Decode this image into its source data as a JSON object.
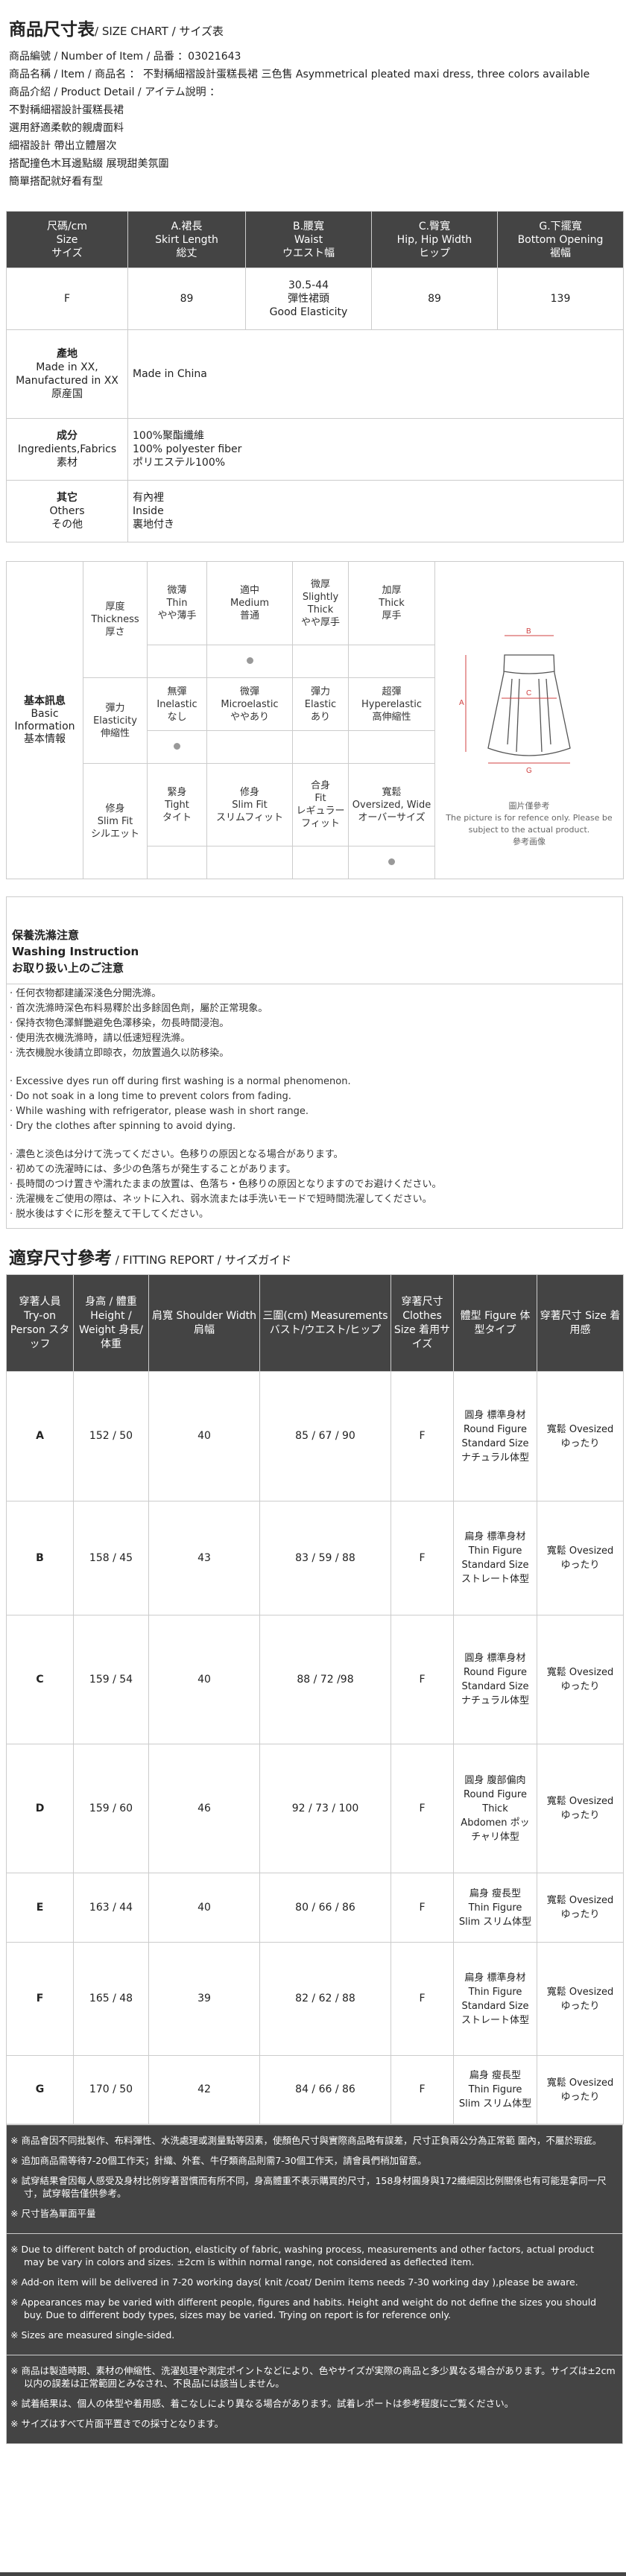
{
  "header": {
    "title": "商品尺寸表",
    "subtitle": "/ SIZE CHART / サイズ表",
    "lines": [
      "商品編號 / Number of Item / 品番 ：03021643",
      "商品名稱 / Item / 商品名 ： 不對稱細褶設計蛋糕長裙 三色售 Asymmetrical pleated maxi dress, three colors available",
      "商品介紹 / Product Detail / アイテム說明 ：",
      "不對稱細褶設計蛋糕長裙",
      "選用舒適柔軟的親膚面料",
      "細褶設計 帶出立體層次",
      "搭配撞色木耳邊點綴 展現甜美氛圍",
      "簡單搭配就好看有型"
    ]
  },
  "size_chart": {
    "headers": [
      [
        "尺碼/cm",
        "Size",
        "サイズ"
      ],
      [
        "A.裙長",
        "Skirt Length",
        "総丈"
      ],
      [
        "B.腰寬",
        "Waist",
        "ウエスト幅"
      ],
      [
        "C.臀寬",
        "Hip, Hip Width",
        "ヒップ"
      ],
      [
        "G.下擺寬",
        "Bottom Opening",
        "裾幅"
      ]
    ],
    "row": {
      "size": "F",
      "length": "89",
      "waist": [
        "30.5-44",
        "彈性裙頭",
        "Good Elasticity"
      ],
      "hip": "89",
      "bottom": "139"
    },
    "origin": {
      "label": [
        "產地",
        "Made in XX, Manufactured in XX",
        "原産国"
      ],
      "value": "Made in China"
    },
    "fabric": {
      "label": [
        "成分",
        "Ingredients,Fabrics",
        "素材"
      ],
      "value": [
        "100%聚酯纖維",
        "100% polyester fiber",
        "ポリエステル100%"
      ]
    },
    "others": {
      "label": [
        "其它",
        "Others",
        "その他"
      ],
      "value": [
        "有內裡",
        "Inside",
        "裏地付き"
      ]
    }
  },
  "basic_info": {
    "title": [
      "基本訊息",
      "Basic Information",
      "基本情報"
    ],
    "rows": [
      {
        "label": [
          "厚度",
          "Thickness",
          "厚さ"
        ],
        "options": [
          [
            "微薄",
            "Thin",
            "やや薄手"
          ],
          [
            "適中",
            "Medium",
            "普通"
          ],
          [
            "微厚",
            "Slightly Thick",
            "やや厚手"
          ],
          [
            "加厚",
            "Thick",
            "厚手"
          ]
        ],
        "selected": 1
      },
      {
        "label": [
          "彈力",
          "Elasticity",
          "伸縮性"
        ],
        "options": [
          [
            "無彈",
            "Inelastic",
            "なし"
          ],
          [
            "微彈",
            "Microelastic",
            "ややあり"
          ],
          [
            "彈力",
            "Elastic",
            "あり"
          ],
          [
            "超彈",
            "Hyperelastic",
            "高伸縮性"
          ]
        ],
        "selected": 0
      },
      {
        "label": [
          "修身",
          "Slim Fit",
          "シルエット"
        ],
        "options": [
          [
            "緊身",
            "Tight",
            "タイト"
          ],
          [
            "修身",
            "Slim Fit",
            "スリムフィット"
          ],
          [
            "合身",
            "Fit",
            "レギュラーフィット"
          ],
          [
            "寬鬆",
            "Oversized, Wide",
            "オーバーサイズ"
          ]
        ],
        "selected": 3
      }
    ],
    "diagram_labels": {
      "a": "A",
      "b": "B",
      "c": "C",
      "g": "G"
    },
    "diagram_caption": [
      "圖片僅參考",
      "The picture is for refence only. Please be subject to the actual product.",
      "參考画像"
    ],
    "diagram_color": "#d04040"
  },
  "washing": {
    "title": [
      "保養洗滌注意",
      "Washing Instruction",
      "お取り扱い上のご注意"
    ],
    "zh": [
      "· 任何衣物都建議深淺色分開洗滌。",
      "· 首次洗滌時深色布料易釋於出多餘固色劑，屬於正常現象。",
      "· 保持衣物色澤鮮艷避免色澤移染，勿長時間浸泡。",
      "· 使用洗衣機洗滌時，請以低速短程洗滌。",
      "· 洗衣機脫水後請立即晾衣，勿放置過久以防移染。"
    ],
    "en": [
      "· Excessive dyes run off during first washing is a normal phenomenon.",
      "· Do not soak in a long time to prevent colors from fading.",
      "· While washing with refrigerator, please wash in short range.",
      "· Dry the clothes after spinning to avoid dying."
    ],
    "ja": [
      "· 濃色と淡色は分けて洗ってください。色移りの原因となる場合があります。",
      "· 初めての洗濯時には、多少の色落ちが発生することがあります。",
      "· 長時間のつけ置きや濡れたままの放置は、色落ち・色移りの原因となりますのでお避けください。",
      "· 洗濯機をご使用の際は、ネットに入れ、弱水流または手洗いモードで短時間洗濯してください。",
      "· 脱水後はすぐに形を整えて干してください。"
    ]
  },
  "fitting": {
    "title": "適穿尺寸參考",
    "subtitle": "/ FITTING REPORT / サイズガイド",
    "headers": [
      "穿著人員 Try-on Person スタッフ",
      "身高 / 體重 Height / Weight 身長/体重",
      "肩寬 Shoulder Width 肩幅",
      "三圍(cm) Measurements バスト/ウエスト/ヒップ",
      "穿著尺寸 Clothes Size 着用サイズ",
      "體型 Figure 体型タイプ",
      "穿著尺寸 Size 着用感"
    ],
    "rows": [
      [
        "A",
        "152 / 50",
        "40",
        "85 / 67 / 90",
        "F",
        "圓身 標準身材 Round Figure Standard Size ナチュラル体型",
        "寬鬆 Ovesized ゆったり"
      ],
      [
        "B",
        "158 / 45",
        "43",
        "83 / 59 / 88",
        "F",
        "扁身 標準身材 Thin Figure Standard Size ストレート体型",
        "寬鬆 Ovesized ゆったり"
      ],
      [
        "C",
        "159 / 54",
        "40",
        "88 / 72 /98",
        "F",
        "圓身 標準身材 Round Figure Standard Size ナチュラル体型",
        "寬鬆 Ovesized ゆったり"
      ],
      [
        "D",
        "159 / 60",
        "46",
        "92 / 73 / 100",
        "F",
        "圓身 腹部偏肉 Round Figure Thick Abdomen ポッチャリ体型",
        "寬鬆 Ovesized ゆったり"
      ],
      [
        "E",
        "163 / 44",
        "40",
        "80 / 66 / 86",
        "F",
        "扁身 瘦長型 Thin Figure Slim スリム体型",
        "寬鬆 Ovesized ゆったり"
      ],
      [
        "F",
        "165 / 48",
        "39",
        "82 / 62 / 88",
        "F",
        "扁身 標準身材 Thin Figure Standard Size ストレート体型",
        "寬鬆 Ovesized ゆったり"
      ],
      [
        "G",
        "170 / 50",
        "42",
        "84 / 66 / 86",
        "F",
        "扁身 瘦長型 Thin Figure Slim スリム体型",
        "寬鬆 Ovesized ゆったり"
      ]
    ]
  },
  "notes": {
    "zh": [
      "※ 商品會因不同批製作、布料彈性、水洗處理或測量點等因素，使顏色尺寸與實際商品略有誤差，尺寸正負兩公分為正常範 圍內，不屬於瑕疵。",
      "※ 追加商品需等待7-20個工作天；針織、外套、牛仔類商品則需7-30個工作天，請會員們稍加留意。",
      "※ 試穿結果會因每人感受及身材比例穿著習慣而有所不同，身高體重不表示購買的尺寸，158身材圓身與172纖細因比例關係也有可能是拿同一尺寸，試穿報告僅供參考。",
      "※ 尺寸皆為單面平量"
    ],
    "en": [
      "※ Due to different batch of production, elasticity of fabric, washing process, measurements and other factors, actual product may be vary in colors and sizes. ±2cm is within normal range, not considered as deflected item.",
      "※ Add-on item will be delivered in 7-20 working days( knit /coat/ Denim items needs 7-30 working day ),please be aware.",
      "※ Appearances may be varied with different people, figures and habits. Height and weight do not define the sizes you should buy. Due to different body types, sizes may be varied. Trying on report is for reference only.",
      "※ Sizes are measured single-sided."
    ],
    "ja": [
      "※ 商品は製造時期、素材の伸縮性、洗濯処理や測定ポイントなどにより、色やサイズが実際の商品と多少異なる場合があります。サイズは±2cm以内の誤差は正常範囲とみなされ、不良品には該当しません。",
      "※ 試着結果は、個人の体型や着用感、着こなしにより異なる場合があります。試着レポートは参考程度にご覧ください。",
      "※ サイズはすべて片面平置きでの採寸となります。"
    ]
  },
  "colors": {
    "header_bg": "#444444",
    "border": "#cccccc",
    "dot": "#999999"
  }
}
